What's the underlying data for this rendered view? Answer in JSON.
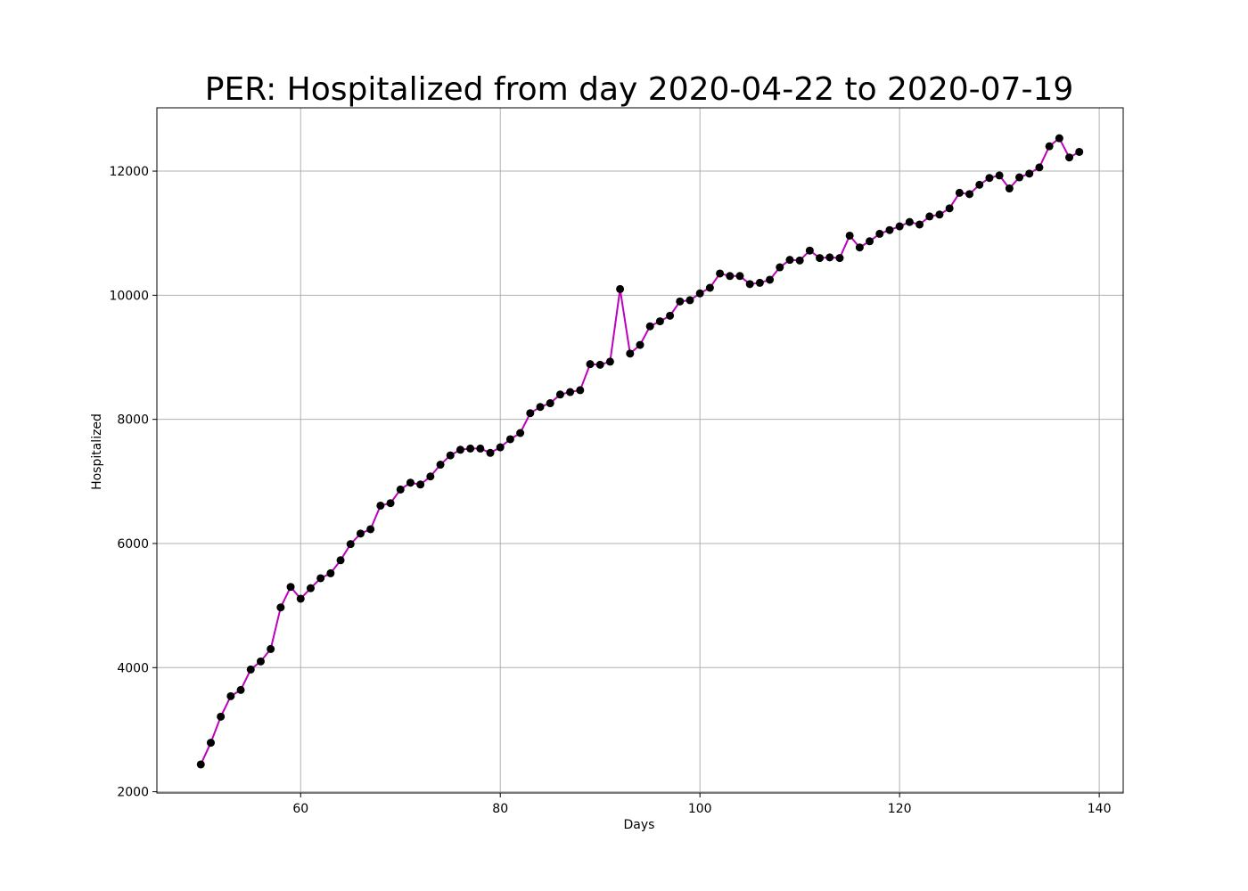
{
  "chart_data": {
    "type": "line",
    "title": "PER: Hospitalized from day 2020-04-22 to 2020-07-19",
    "xlabel": "Days",
    "ylabel": "Hospitalized",
    "xlim": [
      45.6,
      142.4
    ],
    "ylim": [
      1980,
      13020
    ],
    "xticks": [
      60,
      80,
      100,
      120,
      140
    ],
    "yticks": [
      2000,
      4000,
      6000,
      8000,
      10000,
      12000
    ],
    "grid": true,
    "line_color": "#bf00bf",
    "marker_color": "#000000",
    "series": [
      {
        "x": [
          50,
          51,
          52,
          53,
          54,
          55,
          56,
          57,
          58,
          59,
          60,
          61,
          62,
          63,
          64,
          65,
          66,
          67,
          68,
          69,
          70,
          71,
          72,
          73,
          74,
          75,
          76,
          77,
          78,
          79,
          80,
          81,
          82,
          83,
          84,
          85,
          86,
          87,
          88,
          89,
          90,
          91,
          92,
          93,
          94,
          95,
          96,
          97,
          98,
          99,
          100,
          101,
          102,
          103,
          104,
          105,
          106,
          107,
          108,
          109,
          110,
          111,
          112,
          113,
          114,
          115,
          116,
          117,
          118,
          119,
          120,
          121,
          122,
          123,
          124,
          125,
          126,
          127,
          128,
          129,
          130,
          131,
          132,
          133,
          134,
          135,
          136,
          137,
          138
        ],
        "values": [
          2440,
          2790,
          3210,
          3540,
          3640,
          3970,
          4100,
          4300,
          4970,
          5300,
          5110,
          5280,
          5440,
          5520,
          5730,
          5990,
          6160,
          6230,
          6610,
          6650,
          6870,
          6980,
          6950,
          7080,
          7270,
          7420,
          7510,
          7530,
          7530,
          7460,
          7550,
          7680,
          7780,
          8100,
          8200,
          8260,
          8400,
          8440,
          8470,
          8890,
          8880,
          8930,
          10100,
          9060,
          9200,
          9500,
          9580,
          9670,
          9900,
          9920,
          10030,
          10120,
          10350,
          10310,
          10310,
          10180,
          10200,
          10250,
          10450,
          10570,
          10560,
          10720,
          10600,
          10610,
          10600,
          10960,
          10770,
          10870,
          10990,
          11050,
          11110,
          11180,
          11140,
          11270,
          11300,
          11400,
          11650,
          11630,
          11780,
          11890,
          11930,
          11720,
          11900,
          11960,
          12060,
          12400,
          12530,
          12220,
          12310
        ]
      }
    ]
  }
}
